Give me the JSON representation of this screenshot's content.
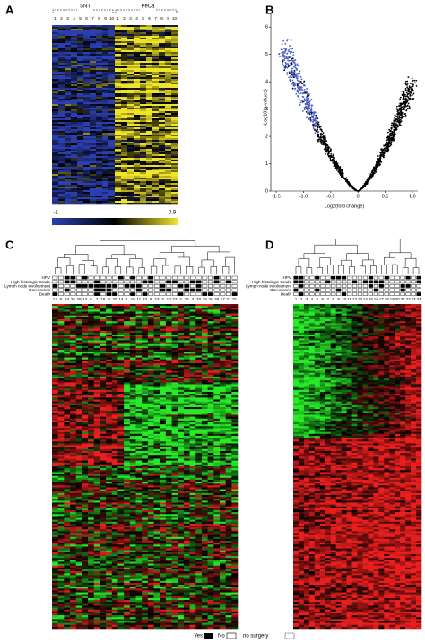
{
  "panels": {
    "a": "A",
    "b": "B",
    "c": "C",
    "d": "D"
  },
  "heatmap_a": {
    "groups": [
      "SNT",
      "PeCa"
    ],
    "columns": [
      "1",
      "2",
      "3",
      "4",
      "5",
      "6",
      "7",
      "8",
      "9",
      "10",
      "1",
      "2",
      "3",
      "4",
      "5",
      "6",
      "7",
      "8",
      "9",
      "10"
    ],
    "scale_labels": [
      "-1",
      "0.9"
    ]
  },
  "volcano": {
    "xlabel": "Log2(fold change)",
    "ylabel": "-Log10(p-values)",
    "xlim": [
      -1.6,
      1.1
    ],
    "ylim": [
      0,
      6.5
    ],
    "xticks": [
      -1.5,
      {
        "value": -1,
        "label": "-1.0"
      },
      -0.5,
      0,
      0.5,
      {
        "value": 1,
        "label": "1.0"
      }
    ],
    "yticks": [
      0,
      1,
      2,
      3,
      4,
      5,
      6
    ]
  },
  "annotations": [
    "HPV",
    "High histologic Grade",
    "Lymph node involvement",
    "Recurrence",
    "Death"
  ],
  "heatmap_c": {
    "columns": [
      "12",
      "5",
      "24",
      "26",
      "29",
      "13",
      "6",
      "7",
      "16",
      "9",
      "25",
      "14",
      "1",
      "19",
      "11",
      "22",
      "8",
      "23",
      "3",
      "10",
      "27",
      "4",
      "15",
      "2",
      "20",
      "18",
      "30",
      "28",
      "17",
      "21",
      "31"
    ]
  },
  "heatmap_d": {
    "columns": [
      "1",
      "2",
      "3",
      "4",
      "5",
      "6",
      "7",
      "8",
      "9",
      "10",
      "11",
      "12",
      "13",
      "14",
      "15",
      "16",
      "17",
      "18",
      "19",
      "20",
      "21",
      "22",
      "23",
      "24"
    ]
  },
  "legend": {
    "yes": "Yes",
    "no": "No",
    "no_surgery": "no surgery"
  }
}
